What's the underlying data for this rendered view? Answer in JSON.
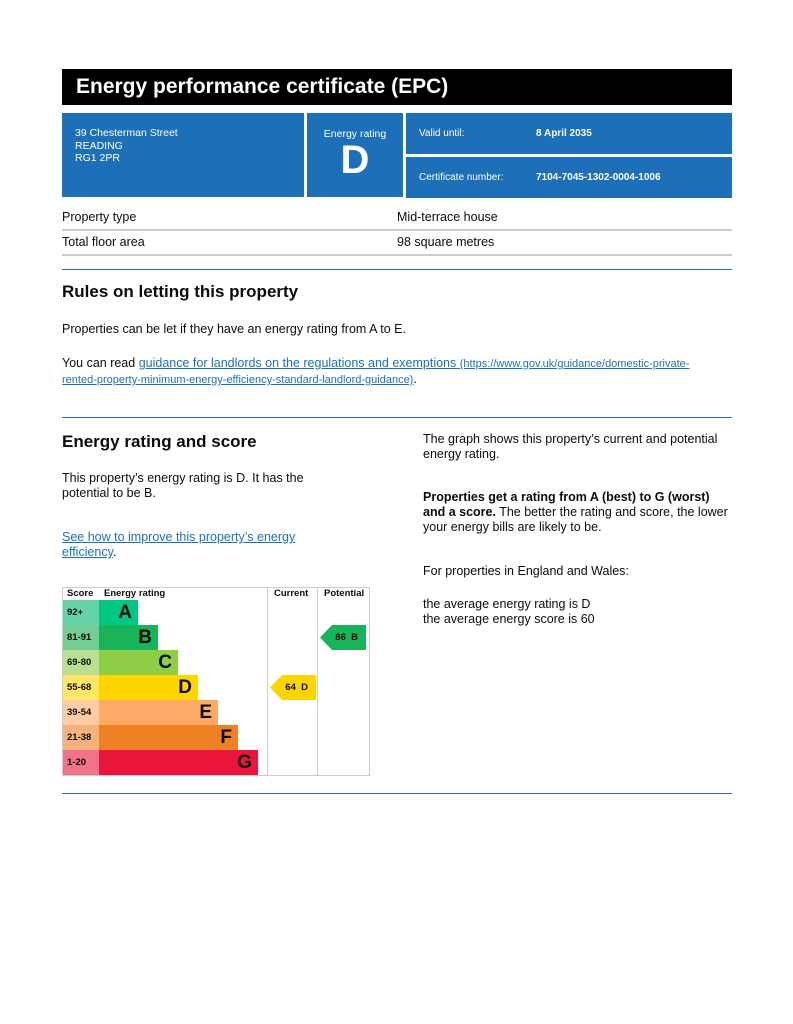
{
  "title": "Energy performance certificate (EPC)",
  "address": {
    "line1": "39 Chesterman Street",
    "line2": "READING",
    "line3": "RG1 2PR"
  },
  "energy_rating": {
    "label": "Energy rating",
    "value": "D"
  },
  "valid_until": {
    "label": "Valid until:",
    "value": "8 April 2035"
  },
  "certificate_number": {
    "label": "Certificate number:",
    "value": "7104-7045-1302-0004-1006"
  },
  "property": [
    {
      "label": "Property type",
      "value": "Mid-terrace house"
    },
    {
      "label": "Total floor area",
      "value": "98 square metres"
    }
  ],
  "letting": {
    "heading": "Rules on letting this property",
    "para1": "Properties can be let if they have an energy rating from A to E.",
    "para2_prefix": "You can read ",
    "link_text": "guidance for landlords on the regulations and exemptions",
    "link_url_text": "(https://www.gov.uk/guidance/domestic-private-rented-property-minimum-energy-efficiency-standard-landlord-guidance)",
    "para2_suffix": "."
  },
  "score_section": {
    "heading": "Energy rating and score",
    "para1": "This property’s energy rating is D. It has the potential to be B.",
    "link": "See how to improve this property’s energy efficiency",
    "link_suffix": ".",
    "right_para1": "The graph shows this property’s current and potential energy rating.",
    "right_bold": "Properties get a rating from A (best) to G (worst) and a score.",
    "right_rest": " The better the rating and score, the lower your energy bills are likely to be.",
    "right_para3": "For properties in England and Wales:",
    "avg_rating": "the average energy rating is D",
    "avg_score": "the average energy score is 60"
  },
  "chart_data": {
    "type": "table",
    "headers": [
      "Score",
      "Energy rating",
      "Current",
      "Potential"
    ],
    "bands": [
      {
        "score": "92+",
        "letter": "A",
        "color": "#00c781",
        "light": "#65d3a7"
      },
      {
        "score": "81-91",
        "letter": "B",
        "color": "#19b459",
        "light": "#74cd92"
      },
      {
        "score": "69-80",
        "letter": "C",
        "color": "#8dce46",
        "light": "#badf90"
      },
      {
        "score": "55-68",
        "letter": "D",
        "color": "#ffd500",
        "light": "#ffe666"
      },
      {
        "score": "39-54",
        "letter": "E",
        "color": "#fcaa65",
        "light": "#fdcca3"
      },
      {
        "score": "21-38",
        "letter": "F",
        "color": "#ef8023",
        "light": "#f5b37b"
      },
      {
        "score": "1-20",
        "letter": "G",
        "color": "#e9153b",
        "light": "#f27389"
      }
    ],
    "current": {
      "score": 64,
      "letter": "D",
      "label": "64  D",
      "color": "#ffd500"
    },
    "potential": {
      "score": 86,
      "letter": "B",
      "label": "86  B",
      "color": "#19b459"
    }
  }
}
